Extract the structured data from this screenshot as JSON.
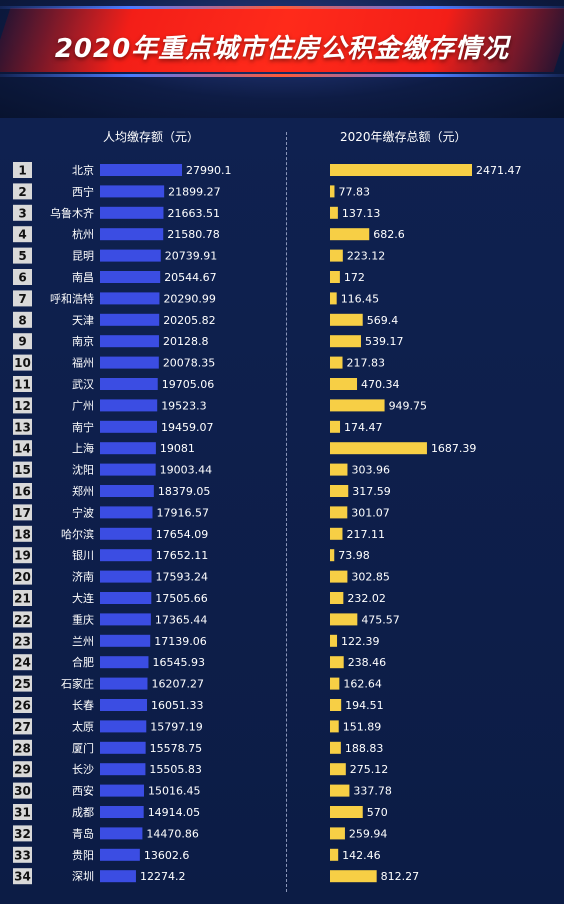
{
  "title": "2020年重点城市住房公积金缴存情况",
  "colors": {
    "rank_badge": "#d9d9d9",
    "left_bar": "#3b4de3",
    "right_bar": "#f7cf45",
    "text": "#ffffff"
  },
  "chart_data": [
    {
      "type": "bar",
      "orientation": "horizontal",
      "title": "人均缴存额（元）",
      "ranks": [
        1,
        2,
        3,
        4,
        5,
        6,
        7,
        8,
        9,
        10,
        11,
        12,
        13,
        14,
        15,
        16,
        17,
        18,
        19,
        20,
        21,
        22,
        23,
        24,
        25,
        26,
        27,
        28,
        29,
        30,
        31,
        32,
        33,
        34
      ],
      "categories": [
        "北京",
        "西宁",
        "乌鲁木齐",
        "杭州",
        "昆明",
        "南昌",
        "呼和浩特",
        "天津",
        "南京",
        "福州",
        "武汉",
        "广州",
        "南宁",
        "上海",
        "沈阳",
        "郑州",
        "宁波",
        "哈尔滨",
        "银川",
        "济南",
        "大连",
        "重庆",
        "兰州",
        "合肥",
        "石家庄",
        "长春",
        "太原",
        "厦门",
        "长沙",
        "西安",
        "成都",
        "青岛",
        "贵阳",
        "深圳"
      ],
      "values": [
        27990.1,
        21899.27,
        21663.51,
        21580.78,
        20739.91,
        20544.67,
        20290.99,
        20205.82,
        20128.8,
        20078.35,
        19705.06,
        19523.3,
        19459.07,
        19081,
        19003.44,
        18379.05,
        17916.57,
        17654.09,
        17652.11,
        17593.24,
        17505.66,
        17365.44,
        17139.06,
        16545.93,
        16207.27,
        16051.33,
        15797.19,
        15578.75,
        15505.83,
        15016.45,
        14914.05,
        14470.86,
        13602.6,
        12274.2
      ],
      "labels": [
        "27990.1",
        "21899.27",
        "21663.51",
        "21580.78",
        "20739.91",
        "20544.67",
        "20290.99",
        "20205.82",
        "20128.8",
        "20078.35",
        "19705.06",
        "19523.3",
        "19459.07",
        "19081",
        "19003.44",
        "18379.05",
        "17916.57",
        "17654.09",
        "17652.11",
        "17593.24",
        "17505.66",
        "17365.44",
        "17139.06",
        "16545.93",
        "16207.27",
        "16051.33",
        "15797.19",
        "15578.75",
        "15505.83",
        "15016.45",
        "14914.05",
        "14470.86",
        "13602.6",
        "12274.2"
      ]
    },
    {
      "type": "bar",
      "orientation": "horizontal",
      "title": "2020年缴存总额（元）",
      "categories": [
        "北京",
        "西宁",
        "乌鲁木齐",
        "杭州",
        "昆明",
        "南昌",
        "呼和浩特",
        "天津",
        "南京",
        "福州",
        "武汉",
        "广州",
        "南宁",
        "上海",
        "沈阳",
        "郑州",
        "宁波",
        "哈尔滨",
        "银川",
        "济南",
        "大连",
        "重庆",
        "兰州",
        "合肥",
        "石家庄",
        "长春",
        "太原",
        "厦门",
        "长沙",
        "西安",
        "成都",
        "青岛",
        "贵阳",
        "深圳"
      ],
      "values": [
        2471.47,
        77.83,
        137.13,
        682.6,
        223.12,
        172,
        116.45,
        569.4,
        539.17,
        217.83,
        470.34,
        949.75,
        174.47,
        1687.39,
        303.96,
        317.59,
        301.07,
        217.11,
        73.98,
        302.85,
        232.02,
        475.57,
        122.39,
        238.46,
        162.64,
        194.51,
        151.89,
        188.83,
        275.12,
        337.78,
        570,
        259.94,
        142.46,
        812.27
      ],
      "labels": [
        "2471.47",
        "77.83",
        "137.13",
        "682.6",
        "223.12",
        "172",
        "116.45",
        "569.4",
        "539.17",
        "217.83",
        "470.34",
        "949.75",
        "174.47",
        "1687.39",
        "303.96",
        "317.59",
        "301.07",
        "217.11",
        "73.98",
        "302.85",
        "232.02",
        "475.57",
        "122.39",
        "238.46",
        "162.64",
        "194.51",
        "151.89",
        "188.83",
        "275.12",
        "337.78",
        "570",
        "259.94",
        "142.46",
        "812.27"
      ]
    }
  ]
}
